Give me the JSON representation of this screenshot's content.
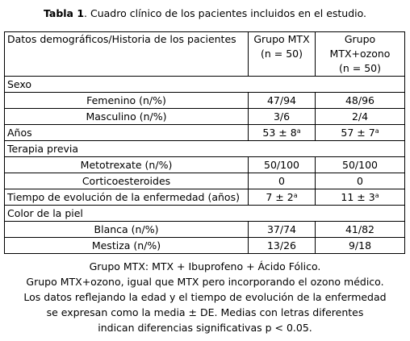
{
  "caption": {
    "bold": "Tabla 1",
    "rest": ". Cuadro clínico de los pacientes incluidos en el estudio."
  },
  "table": {
    "headers": {
      "col1": "Datos demográficos/Historia de los pacientes",
      "col2_line1": "Grupo MTX",
      "col2_line2": "(n = 50)",
      "col3_line1": "Grupo MTX+ozono",
      "col3_line2": "(n = 50)"
    },
    "rows": {
      "sexo": "Sexo",
      "femenino": {
        "label": "Femenino (n/%)",
        "mtx": "47/94",
        "ozono": "48/96"
      },
      "masculino": {
        "label": "Masculino (n/%)",
        "mtx": "3/6",
        "ozono": "2/4"
      },
      "anos": {
        "label": "Años",
        "mtx": "53 ± 8",
        "mtx_sup": "a",
        "ozono": "57 ± 7",
        "ozono_sup": "a"
      },
      "terapia": "Terapia previa",
      "metotrexate": {
        "label": "Metotrexate (n/%)",
        "mtx": "50/100",
        "ozono": "50/100"
      },
      "corticoides": {
        "label": "Corticoesteroides",
        "mtx": "0",
        "ozono": "0"
      },
      "tiempo": {
        "label": "Tiempo de evolución de la enfermedad (años)",
        "mtx": "7 ± 2",
        "mtx_sup": "a",
        "ozono": "11 ± 3",
        "ozono_sup": "a"
      },
      "color": "Color de la piel",
      "blanca": {
        "label": "Blanca (n/%)",
        "mtx": "37/74",
        "ozono": "41/82"
      },
      "mestiza": {
        "label": "Mestiza (n/%)",
        "mtx": "13/26",
        "ozono": "9/18"
      }
    }
  },
  "footer": {
    "line1": "Grupo MTX: MTX + Ibuprofeno + Ácido Fólico.",
    "line2": "Grupo MTX+ozono, igual que MTX pero incorporando el ozono médico.",
    "line3": "Los datos reflejando la edad y el tiempo de evolución de la enfermedad",
    "line4": "se expresan como la media ± DE. Medias con letras diferentes",
    "line5": "indican diferencias significativas  p < 0.05."
  }
}
